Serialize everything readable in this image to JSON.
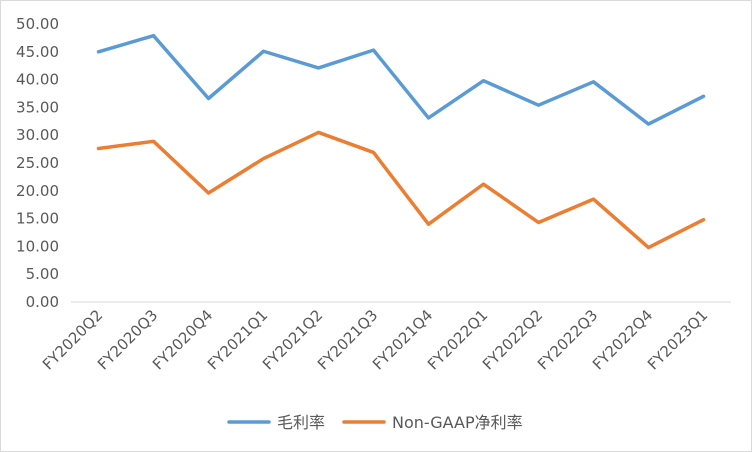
{
  "chart_data": {
    "type": "line",
    "title": "",
    "xlabel": "",
    "ylabel": "",
    "ylim": [
      0,
      50
    ],
    "yticks": [
      "0.00",
      "5.00",
      "10.00",
      "15.00",
      "20.00",
      "25.00",
      "30.00",
      "35.00",
      "40.00",
      "45.00",
      "50.00"
    ],
    "grid": false,
    "legend_position": "bottom",
    "categories": [
      "FY2020Q2",
      "FY2020Q3",
      "FY2020Q4",
      "FY2021Q1",
      "FY2021Q2",
      "FY2021Q3",
      "FY2021Q4",
      "FY2022Q1",
      "FY2022Q2",
      "FY2022Q3",
      "FY2022Q4",
      "FY2023Q1"
    ],
    "series": [
      {
        "name": "毛利率",
        "color": "#5b9bd5",
        "values": [
          45.0,
          47.9,
          36.6,
          45.1,
          42.1,
          45.3,
          33.1,
          39.8,
          35.4,
          39.6,
          32.0,
          37.0
        ]
      },
      {
        "name": "Non-GAAP净利率",
        "color": "#ed7d31",
        "values": [
          27.6,
          28.9,
          19.6,
          25.8,
          30.5,
          26.9,
          14.0,
          21.2,
          14.3,
          18.5,
          9.8,
          14.8
        ]
      }
    ]
  }
}
